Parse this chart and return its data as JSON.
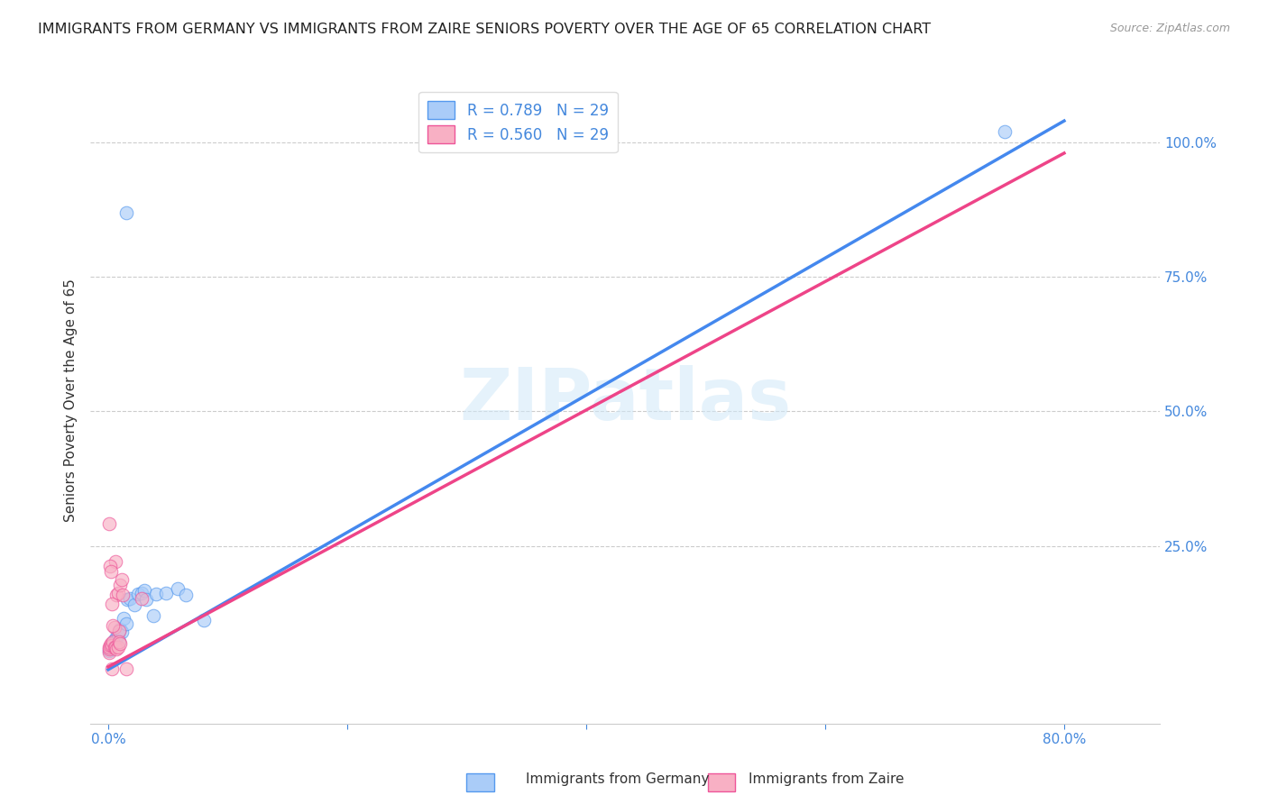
{
  "title": "IMMIGRANTS FROM GERMANY VS IMMIGRANTS FROM ZAIRE SENIORS POVERTY OVER THE AGE OF 65 CORRELATION CHART",
  "source": "Source: ZipAtlas.com",
  "ylabel": "Seniors Poverty Over the Age of 65",
  "x_tick_labels": [
    "0.0%",
    "",
    "",
    "",
    "80.0%"
  ],
  "x_tick_positions": [
    0.0,
    0.2,
    0.4,
    0.6,
    0.8
  ],
  "y_tick_labels": [
    "25.0%",
    "50.0%",
    "75.0%",
    "100.0%"
  ],
  "y_tick_positions": [
    0.25,
    0.5,
    0.75,
    1.0
  ],
  "xlim": [
    -0.015,
    0.88
  ],
  "ylim": [
    -0.08,
    1.12
  ],
  "legend_label1": "R = 0.789   N = 29",
  "legend_label2": "R = 0.560   N = 29",
  "watermark": "ZIPatlas",
  "germany_scatter": [
    [
      0.001,
      0.055
    ],
    [
      0.0015,
      0.06
    ],
    [
      0.002,
      0.058
    ],
    [
      0.003,
      0.065
    ],
    [
      0.004,
      0.07
    ],
    [
      0.005,
      0.075
    ],
    [
      0.006,
      0.072
    ],
    [
      0.007,
      0.08
    ],
    [
      0.008,
      0.085
    ],
    [
      0.009,
      0.072
    ],
    [
      0.01,
      0.095
    ],
    [
      0.011,
      0.09
    ],
    [
      0.013,
      0.115
    ],
    [
      0.015,
      0.105
    ],
    [
      0.016,
      0.15
    ],
    [
      0.018,
      0.152
    ],
    [
      0.022,
      0.14
    ],
    [
      0.025,
      0.16
    ],
    [
      0.028,
      0.162
    ],
    [
      0.03,
      0.168
    ],
    [
      0.032,
      0.15
    ],
    [
      0.038,
      0.12
    ],
    [
      0.04,
      0.16
    ],
    [
      0.048,
      0.162
    ],
    [
      0.058,
      0.17
    ],
    [
      0.065,
      0.158
    ],
    [
      0.08,
      0.112
    ],
    [
      0.015,
      0.87
    ],
    [
      0.75,
      1.02
    ]
  ],
  "zaire_scatter": [
    [
      0.0005,
      0.052
    ],
    [
      0.0008,
      0.058
    ],
    [
      0.001,
      0.062
    ],
    [
      0.0015,
      0.065
    ],
    [
      0.002,
      0.068
    ],
    [
      0.003,
      0.065
    ],
    [
      0.004,
      0.072
    ],
    [
      0.005,
      0.098
    ],
    [
      0.006,
      0.22
    ],
    [
      0.007,
      0.158
    ],
    [
      0.008,
      0.162
    ],
    [
      0.009,
      0.092
    ],
    [
      0.01,
      0.178
    ],
    [
      0.011,
      0.188
    ],
    [
      0.012,
      0.158
    ],
    [
      0.0005,
      0.292
    ],
    [
      0.0018,
      0.212
    ],
    [
      0.0022,
      0.202
    ],
    [
      0.003,
      0.142
    ],
    [
      0.004,
      0.102
    ],
    [
      0.005,
      0.062
    ],
    [
      0.006,
      0.062
    ],
    [
      0.007,
      0.058
    ],
    [
      0.008,
      0.062
    ],
    [
      0.009,
      0.072
    ],
    [
      0.01,
      0.068
    ],
    [
      0.028,
      0.152
    ],
    [
      0.015,
      0.022
    ],
    [
      0.003,
      0.022
    ]
  ],
  "germany_line_x": [
    0.0,
    0.8
  ],
  "germany_line_y": [
    0.02,
    1.04
  ],
  "zaire_line_x": [
    0.0,
    0.8
  ],
  "zaire_line_y": [
    0.025,
    0.98
  ],
  "scatter_size": 110,
  "scatter_alpha": 0.65,
  "germany_color": "#aaccf8",
  "zaire_color": "#f8b0c4",
  "germany_edge_color": "#5599ee",
  "zaire_edge_color": "#ee5599",
  "germany_line_color": "#4488ee",
  "zaire_line_color": "#ee4488",
  "background_color": "#ffffff",
  "grid_color": "#cccccc",
  "title_fontsize": 11.5,
  "axis_label_fontsize": 11,
  "tick_fontsize": 11,
  "tick_color": "#4488dd",
  "watermark_color": "#d0e8f8",
  "legend_color": "#4488dd"
}
